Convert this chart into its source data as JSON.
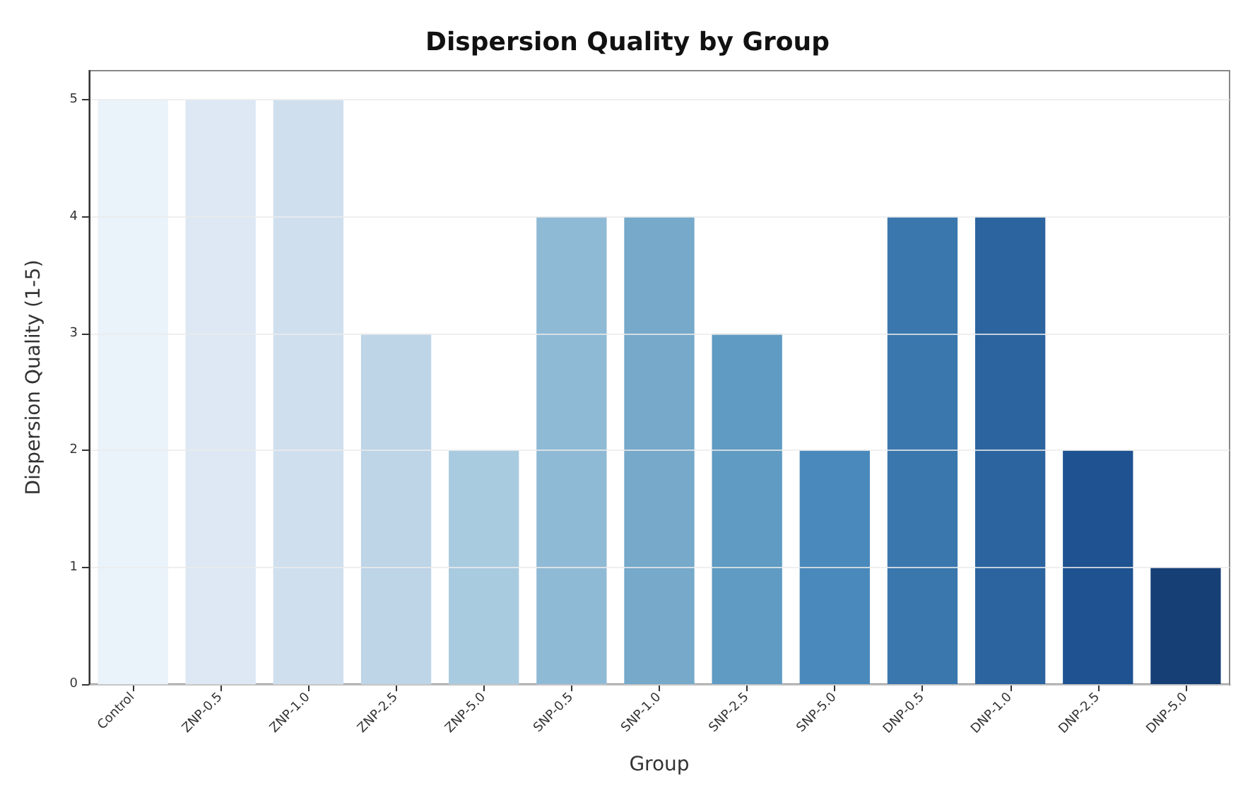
{
  "chart_data": {
    "type": "bar",
    "title": "Dispersion Quality by Group",
    "xlabel": "Group",
    "ylabel": "Dispersion Quality (1-5)",
    "categories": [
      "Control",
      "ZNP-0.5",
      "ZNP-1.0",
      "ZNP-2.5",
      "ZNP-5.0",
      "SNP-0.5",
      "SNP-1.0",
      "SNP-2.5",
      "SNP-5.0",
      "DNP-0.5",
      "DNP-1.0",
      "DNP-2.5",
      "DNP-5.0"
    ],
    "values": [
      5,
      5,
      5,
      3,
      2,
      4,
      4,
      3,
      2,
      4,
      4,
      2,
      1
    ],
    "colors": [
      "#eaf2fa",
      "#dde8f4",
      "#cfdfee",
      "#bed4e7",
      "#a9cbe0",
      "#8fbad5",
      "#76a9ca",
      "#5f9bc2",
      "#4a89bb",
      "#3a77ad",
      "#2c649f",
      "#1e5290",
      "#163f75"
    ],
    "ylim": [
      0,
      5.25
    ],
    "yticks": [
      0,
      1,
      2,
      3,
      4,
      5
    ],
    "grid": "y"
  }
}
